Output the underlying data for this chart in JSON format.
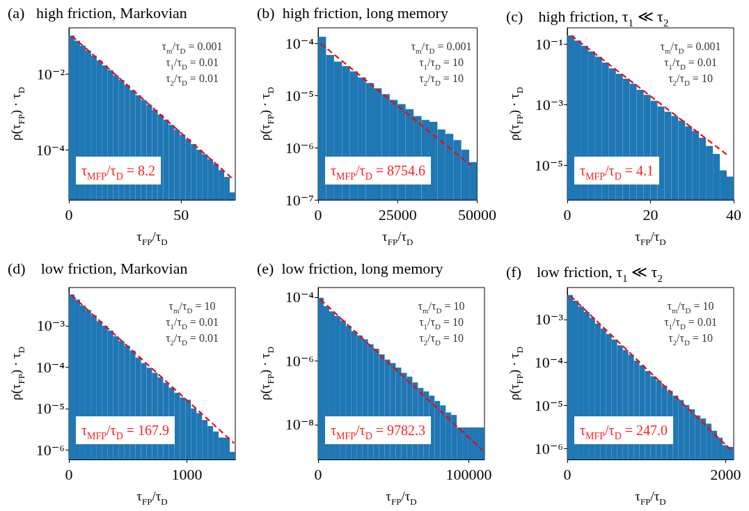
{
  "chart_data": [
    {
      "type": "histogram",
      "title": "(a)   high friction, Markovian",
      "xlabel": "τ$_{FP}$/τ$_{D}$",
      "ylabel": "ρ(τ$_{FP}$) · τ$_{D}$",
      "color": "#1f77b4",
      "log": true,
      "bins": [
        0,
        2.47,
        4.94,
        7.41,
        9.88,
        12.35,
        14.82,
        17.29,
        19.76,
        22.23,
        24.7,
        27.17,
        29.64,
        32.11,
        34.58,
        37.05,
        39.52,
        41.99,
        44.46,
        46.93,
        49.4,
        51.87,
        54.34,
        56.81,
        59.28,
        61.75,
        64.22,
        66.69,
        69.16,
        71.63,
        74.1
      ],
      "values": [
        0.105,
        0.0778,
        0.0575,
        0.0426,
        0.0315,
        0.0233,
        0.0172,
        0.0128,
        0.0094,
        0.007,
        0.0052,
        0.0038,
        0.0028,
        0.0021,
        0.00155,
        0.00114,
        0.00085,
        0.00063,
        0.00046,
        0.00034,
        0.00025,
        0.00019,
        0.00014,
        0.0001,
        7.6e-05,
        5.6e-05,
        4.2e-05,
        2.9e-05,
        1.9e-05,
        7.4e-06
      ],
      "series": [
        {
          "type": "line",
          "color": "#ff0000",
          "line_style": "dashed",
          "x": [
            1.3,
            73.1
          ],
          "values": [
            0.104,
            1.66e-05
          ]
        }
      ],
      "xlim": [
        0,
        74.1
      ],
      "xticks": [
        0,
        50
      ],
      "ylim": [
        4.7e-06,
        0.17
      ],
      "yticks": [
        {
          "value": 0.01,
          "label": "10⁻²"
        },
        {
          "value": 0.0001,
          "label": "10⁻⁴"
        }
      ],
      "annotations": [
        "τ$_{m}$/τ$_{D}$ = 0.001",
        "τ$_{1}$/τ$_{D}$ = 0.01",
        "τ$_{2}$/τ$_{D}$ = 0.01",
        "τ$_{MFP}$/τ$_{D}$ = 8.2"
      ]
    },
    {
      "type": "histogram",
      "title": "(b)  high friction, long memory",
      "xlabel": "τ$_{FP}$/τ$_{D}$",
      "ylabel": "ρ(τ$_{FP}$) · τ$_{D}$",
      "color": "#1f77b4",
      "log": true,
      "bins": [
        0,
        2500,
        5000,
        7500,
        10000,
        12500,
        15000,
        17500,
        20000,
        22500,
        25000,
        27500,
        30000,
        32500,
        35000,
        37500,
        40000,
        42500,
        45000,
        47500,
        50000
      ],
      "values": [
        0.000135,
        6e-05,
        4.5e-05,
        3.67e-05,
        2.93e-05,
        2.24e-05,
        1.75e-05,
        1.39e-05,
        1.07e-05,
        8.3e-06,
        6.9e-06,
        5.5e-06,
        4.06e-06,
        3.41e-06,
        3.15e-06,
        2.24e-06,
        1.85e-06,
        1.4e-06,
        9.2e-07,
        5.3e-07
      ],
      "series": [
        {
          "type": "line",
          "color": "#ff0000",
          "line_style": "dashed",
          "x": [
            770,
            48000
          ],
          "values": [
            0.0001,
            4.6e-07
          ]
        }
      ],
      "xlim": [
        0,
        50000
      ],
      "xticks": [
        0,
        25000,
        50000
      ],
      "ylim": [
        1e-07,
        0.0002
      ],
      "yticks": [
        {
          "value": 0.0001,
          "label": "10⁻⁴"
        },
        {
          "value": 1e-05,
          "label": "10⁻⁵"
        },
        {
          "value": 1e-06,
          "label": "10⁻⁶"
        },
        {
          "value": 1e-07,
          "label": "10⁻⁷"
        }
      ],
      "annotations": [
        "τ$_{m}$/τ$_{D}$ = 0.001",
        "τ$_{1}$/τ$_{D}$ = 10",
        "τ$_{2}$/τ$_{D}$ = 10",
        "τ$_{MFP}$/τ$_{D}$ = 8754.6"
      ]
    },
    {
      "type": "histogram",
      "title": "(c)    high friction, τ$_{1}$ ≪ τ$_{2}$",
      "xlabel": "τ$_{FP}$/τ$_{D}$",
      "ylabel": "ρ(τ$_{FP}$) · τ$_{D}$",
      "color": "#1f77b4",
      "log": true,
      "bins": [
        0,
        1.67,
        3.33,
        5,
        6.67,
        8.33,
        10,
        11.67,
        13.33,
        15,
        16.67,
        18.33,
        20,
        21.67,
        23.33,
        25,
        26.67,
        28.33,
        30,
        31.67,
        33.33,
        35,
        36.67,
        38.33,
        40
      ],
      "values": [
        0.191,
        0.13,
        0.087,
        0.057,
        0.038,
        0.0245,
        0.0158,
        0.0105,
        0.0072,
        0.0049,
        0.0031,
        0.0021,
        0.00135,
        0.00087,
        0.00059,
        0.00043,
        0.0003,
        0.000195,
        0.000137,
        8.1e-05,
        4.4e-05,
        2.4e-05,
        6.9e-06,
        4.3e-06
      ],
      "series": [
        {
          "type": "line",
          "color": "#ff0000",
          "line_style": "dashed",
          "x": [
            0.95,
            38.7
          ],
          "values": [
            0.19,
            2.1e-05
          ]
        }
      ],
      "xlim": [
        0,
        40
      ],
      "xticks": [
        0,
        20,
        40
      ],
      "ylim": [
        7.4e-07,
        0.34
      ],
      "yticks": [
        {
          "value": 0.1,
          "label": "10⁻¹"
        },
        {
          "value": 0.001,
          "label": "10⁻³"
        },
        {
          "value": 1e-05,
          "label": "10⁻⁵"
        }
      ],
      "annotations": [
        "τ$_{m}$/τ$_{D}$ = 0.001",
        "τ$_{1}$/τ$_{D}$ = 0.01",
        "τ$_{2}$/τ$_{D}$ = 10",
        "τ$_{MFP}$/τ$_{D}$ = 4.1"
      ]
    },
    {
      "type": "histogram",
      "title": "(d)    low friction, Markovian",
      "xlabel": "τ$_{FP}$/τ$_{D}$",
      "ylabel": "ρ(τ$_{FP}$) · τ$_{D}$",
      "color": "#1f77b4",
      "log": true,
      "bins": [
        0,
        47,
        94,
        141,
        188,
        235,
        282,
        329,
        376,
        423,
        470,
        517,
        564,
        611,
        658,
        705,
        752,
        799,
        846,
        893,
        940,
        987,
        1034,
        1081,
        1128,
        1175,
        1222,
        1269,
        1316,
        1363,
        1410
      ],
      "values": [
        0.0057,
        0.0043,
        0.0031,
        0.0024,
        0.0018,
        0.0013,
        0.001,
        0.00077,
        0.00056,
        0.00043,
        0.00033,
        0.00025,
        0.00017,
        0.000126,
        9.7e-05,
        7.3e-05,
        5.7e-05,
        4.2e-05,
        3.2e-05,
        2.4e-05,
        1.86e-05,
        1.63e-05,
        1.01e-05,
        7.8e-06,
        5.3e-06,
        3.8e-06,
        2.8e-06,
        2e-06,
        2e-06,
        9e-07
      ],
      "series": [
        {
          "type": "line",
          "color": "#ff0000",
          "line_style": "dashed",
          "x": [
            22,
            1400
          ],
          "values": [
            0.0055,
            1.46e-06
          ]
        }
      ],
      "xlim": [
        0,
        1410
      ],
      "xticks": [
        0,
        1000
      ],
      "ylim": [
        5.9e-07,
        0.0084
      ],
      "yticks": [
        {
          "value": 0.001,
          "label": "10⁻³"
        },
        {
          "value": 0.0001,
          "label": "10⁻⁴"
        },
        {
          "value": 1e-05,
          "label": "10⁻⁵"
        },
        {
          "value": 1e-06,
          "label": "10⁻⁶"
        }
      ],
      "annotations": [
        "τ$_{m}$/τ$_{D}$ = 10",
        "τ$_{1}$/τ$_{D}$ = 0.01",
        "τ$_{2}$/τ$_{D}$ = 0.01",
        "τ$_{MFP}$/τ$_{D}$ = 167.9"
      ]
    },
    {
      "type": "histogram",
      "title": "(e)  low friction, long memory",
      "xlabel": "τ$_{FP}$/τ$_{D}$",
      "ylabel": "ρ(τ$_{FP}$) · τ$_{D}$",
      "color": "#1f77b4",
      "log": true,
      "bins": [
        0,
        3680,
        7360,
        11040,
        14720,
        18400,
        22080,
        25760,
        29440,
        33120,
        36800,
        40480,
        44160,
        47840,
        51520,
        55200,
        58880,
        62560,
        66240,
        69920,
        73600,
        77280,
        80960,
        84640,
        88320,
        92000,
        95680,
        99360,
        103040,
        106720,
        110400
      ],
      "values": [
        9.5e-05,
        5.2e-05,
        3.55e-05,
        2.55e-05,
        1.84e-05,
        1.26e-05,
        8.5e-06,
        6.3e-06,
        4.7e-06,
        3.3e-06,
        2.4e-06,
        1.6e-06,
        1.1e-06,
        8.5e-07,
        6.1e-07,
        4.2e-07,
        3.2e-07,
        2.1e-07,
        1.4e-07,
        1.1e-07,
        8.1e-08,
        5.5e-08,
        4e-08,
        2.4e-08,
        2e-08,
        8.1e-09,
        8.1e-09,
        8.1e-09,
        8.1e-09,
        8.1e-09
      ],
      "series": [
        {
          "type": "line",
          "color": "#ff0000",
          "line_style": "dashed",
          "x": [
            1540,
            108800
          ],
          "values": [
            8.5e-05,
            1.6e-09
          ]
        }
      ],
      "xlim": [
        0,
        110400
      ],
      "xticks": [
        0,
        100000
      ],
      "ylim": [
        8e-10,
        0.0002
      ],
      "yticks": [
        {
          "value": 0.0001,
          "label": "10⁻⁴"
        },
        {
          "value": 1e-06,
          "label": "10⁻⁶"
        },
        {
          "value": 1e-08,
          "label": "10⁻⁸"
        }
      ],
      "annotations": [
        "τ$_{m}$/τ$_{D}$ = 10",
        "τ$_{1}$/τ$_{D}$ = 10",
        "τ$_{2}$/τ$_{D}$ = 10",
        "τ$_{MFP}$/τ$_{D}$ = 9782.3"
      ]
    },
    {
      "type": "histogram",
      "title": "(f)    low friction, τ$_{1}$ ≪ τ$_{2}$",
      "xlabel": "τ$_{FP}$/τ$_{D}$",
      "ylabel": "ρ(τ$_{FP}$) · τ$_{D}$",
      "color": "#1f77b4",
      "log": true,
      "bins": [
        0,
        70,
        140,
        210,
        280,
        350,
        420,
        490,
        560,
        630,
        700,
        770,
        840,
        910,
        980,
        1050,
        1120,
        1190,
        1260,
        1330,
        1400,
        1470,
        1540,
        1610,
        1680,
        1750,
        1820,
        1890,
        1960,
        2030,
        2100
      ],
      "values": [
        0.0037,
        0.0027,
        0.002,
        0.0015,
        0.0011,
        0.0008,
        0.00061,
        0.00046,
        0.00034,
        0.00025,
        0.000195,
        0.000152,
        0.00011,
        8.6e-05,
        6.3e-05,
        4.8e-05,
        3.8e-05,
        2.9e-05,
        2.2e-05,
        1.7e-05,
        1.35e-05,
        1.03e-05,
        8.2e-06,
        5.9e-06,
        5e-06,
        3.8e-06,
        2.6e-06,
        1.8e-06,
        1.2e-06,
        1.1e-06
      ],
      "series": [
        {
          "type": "line",
          "color": "#ff0000",
          "line_style": "dashed",
          "x": [
            41,
            2062
          ],
          "values": [
            0.0035,
            9.5e-07
          ]
        }
      ],
      "xlim": [
        0,
        2100
      ],
      "xticks": [
        0,
        2000
      ],
      "ylim": [
        5.6e-07,
        0.0055
      ],
      "yticks": [
        {
          "value": 0.001,
          "label": "10⁻³"
        },
        {
          "value": 0.0001,
          "label": "10⁻⁴"
        },
        {
          "value": 1e-05,
          "label": "10⁻⁵"
        },
        {
          "value": 1e-06,
          "label": "10⁻⁶"
        }
      ],
      "annotations": [
        "τ$_{m}$/τ$_{D}$ = 10",
        "τ$_{1}$/τ$_{D}$ = 0.01",
        "τ$_{2}$/τ$_{D}$ = 10",
        "τ$_{MFP}$/τ$_{D}$ = 247.0"
      ]
    }
  ]
}
